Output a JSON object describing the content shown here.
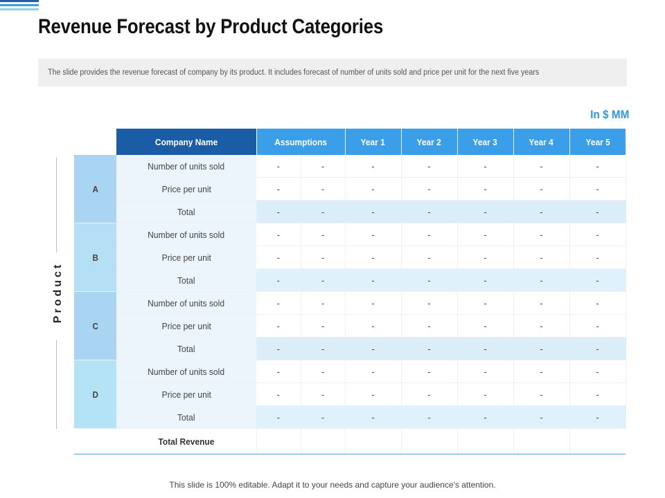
{
  "title": "Revenue Forecast by Product Categories",
  "description": "The slide provides the revenue forecast of company by its product. It includes forecast of number of units sold and price per unit for the next five years",
  "unit_label": "In $ MM",
  "axis_label": "Product",
  "table": {
    "headers": {
      "company": "Company Name",
      "assumptions": "Assumptions",
      "years": [
        "Year 1",
        "Year 2",
        "Year 3",
        "Year 4",
        "Year 5"
      ]
    },
    "groups": [
      {
        "letter": "A",
        "rows": [
          {
            "label": "Number of units sold",
            "values": [
              "-",
              "-",
              "-",
              "-",
              "-",
              "-",
              "-"
            ]
          },
          {
            "label": "Price per unit",
            "values": [
              "-",
              "-",
              "-",
              "-",
              "-",
              "-",
              "-"
            ]
          },
          {
            "label": "Total",
            "values": [
              "-",
              "-",
              "-",
              "-",
              "-",
              "-",
              "-"
            ]
          }
        ]
      },
      {
        "letter": "B",
        "rows": [
          {
            "label": "Number of units sold",
            "values": [
              "-",
              "-",
              "-",
              "-",
              "-",
              "-",
              "-"
            ]
          },
          {
            "label": "Price per unit",
            "values": [
              "-",
              "-",
              "-",
              "-",
              "-",
              "-",
              "-"
            ]
          },
          {
            "label": "Total",
            "values": [
              "-",
              "-",
              "-",
              "-",
              "-",
              "-",
              "-"
            ]
          }
        ]
      },
      {
        "letter": "C",
        "rows": [
          {
            "label": "Number of units sold",
            "values": [
              "-",
              "-",
              "-",
              "-",
              "-",
              "-",
              "-"
            ]
          },
          {
            "label": "Price per unit",
            "values": [
              "-",
              "-",
              "-",
              "-",
              "-",
              "-",
              "-"
            ]
          },
          {
            "label": "Total",
            "values": [
              "-",
              "-",
              "-",
              "-",
              "-",
              "-",
              "-"
            ]
          }
        ]
      },
      {
        "letter": "D",
        "rows": [
          {
            "label": "Number of units sold",
            "values": [
              "-",
              "-",
              "-",
              "-",
              "-",
              "-",
              "-"
            ]
          },
          {
            "label": "Price per unit",
            "values": [
              "-",
              "-",
              "-",
              "-",
              "-",
              "-",
              "-"
            ]
          },
          {
            "label": "Total",
            "values": [
              "-",
              "-",
              "-",
              "-",
              "-",
              "-",
              "-"
            ]
          }
        ]
      }
    ],
    "total_revenue_label": "Total Revenue"
  },
  "footer": "This slide is 100% editable. Adapt it to your needs and capture your audience's attention.",
  "colors": {
    "company_header": "#1b5ca6",
    "header": "#3a9ee8",
    "accent_text": "#2d97e0"
  }
}
